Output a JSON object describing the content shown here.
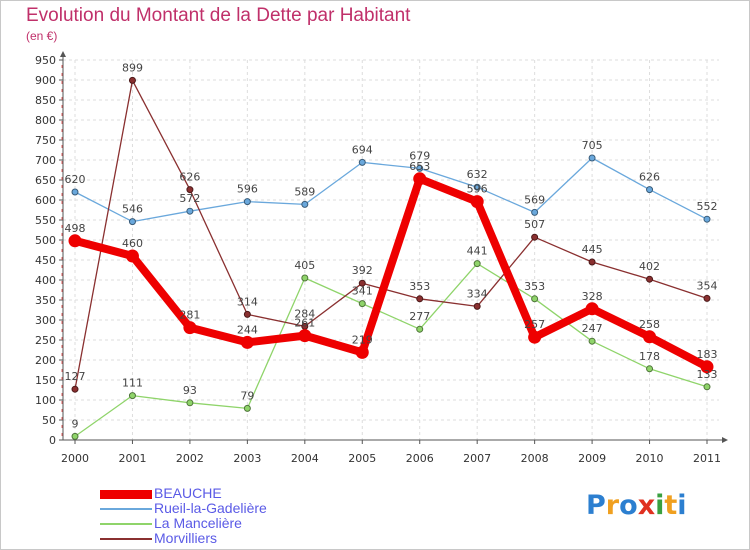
{
  "title": "Evolution du Montant de la Dette par Habitant",
  "unit": "(en €)",
  "logo": {
    "letters": [
      {
        "ch": "P",
        "color": "#2c7fd0"
      },
      {
        "ch": "r",
        "color": "#f0a020"
      },
      {
        "ch": "o",
        "color": "#2c7fd0"
      },
      {
        "ch": "x",
        "color": "#e03020"
      },
      {
        "ch": "i",
        "color": "#3aa040"
      },
      {
        "ch": "t",
        "color": "#f0a020"
      },
      {
        "ch": "i",
        "color": "#2c7fd0"
      }
    ]
  },
  "chart_data": {
    "type": "line",
    "title": "Evolution du Montant de la Dette par Habitant",
    "ylabel": "(en €)",
    "xlabel": "",
    "categories": [
      "2000",
      "2001",
      "2002",
      "2003",
      "2004",
      "2005",
      "2006",
      "2007",
      "2008",
      "2009",
      "2010",
      "2011"
    ],
    "ylim": [
      0,
      950
    ],
    "yticks": [
      0,
      50,
      100,
      150,
      200,
      250,
      300,
      350,
      400,
      450,
      500,
      550,
      600,
      650,
      700,
      750,
      800,
      850,
      900,
      950
    ],
    "grid": true,
    "legend": "bottom-left",
    "series": [
      {
        "name": "BEAUCHE",
        "color": "#ee0000",
        "width": 8,
        "marker": 6.5,
        "values": [
          498,
          460,
          281,
          244,
          261,
          219,
          653,
          596,
          257,
          328,
          258,
          183
        ],
        "labels": [
          "498",
          "460",
          "281",
          "244",
          "261",
          "219",
          "653",
          "596",
          "257",
          "328",
          "258",
          "183"
        ]
      },
      {
        "name": "Rueil-la-Gadelière",
        "color": "#6aa8dc",
        "width": 1.3,
        "marker": 3,
        "values": [
          620,
          546,
          572,
          596,
          589,
          694,
          679,
          632,
          569,
          705,
          626,
          552
        ],
        "labels": [
          "620",
          "546",
          "572",
          "596",
          "589",
          "694",
          "679",
          "632",
          "569",
          "705",
          "626",
          "552"
        ]
      },
      {
        "name": "La Mancelière",
        "color": "#8fd46a",
        "width": 1.3,
        "marker": 3,
        "values": [
          9,
          111,
          93,
          79,
          405,
          341,
          277,
          441,
          353,
          247,
          178,
          133
        ],
        "labels": [
          "9",
          "111",
          "93",
          "79",
          "405",
          "341",
          "277",
          "441",
          "353",
          "247",
          "178",
          "133"
        ]
      },
      {
        "name": "Morvilliers",
        "color": "#8a3030",
        "width": 1.3,
        "marker": 3,
        "values": [
          127,
          899,
          626,
          314,
          284,
          392,
          353,
          334,
          507,
          445,
          402,
          354
        ],
        "labels": [
          "127",
          "899",
          "626",
          "314",
          "284",
          "392",
          "353",
          "334",
          "507",
          "445",
          "402",
          "354"
        ]
      }
    ]
  }
}
